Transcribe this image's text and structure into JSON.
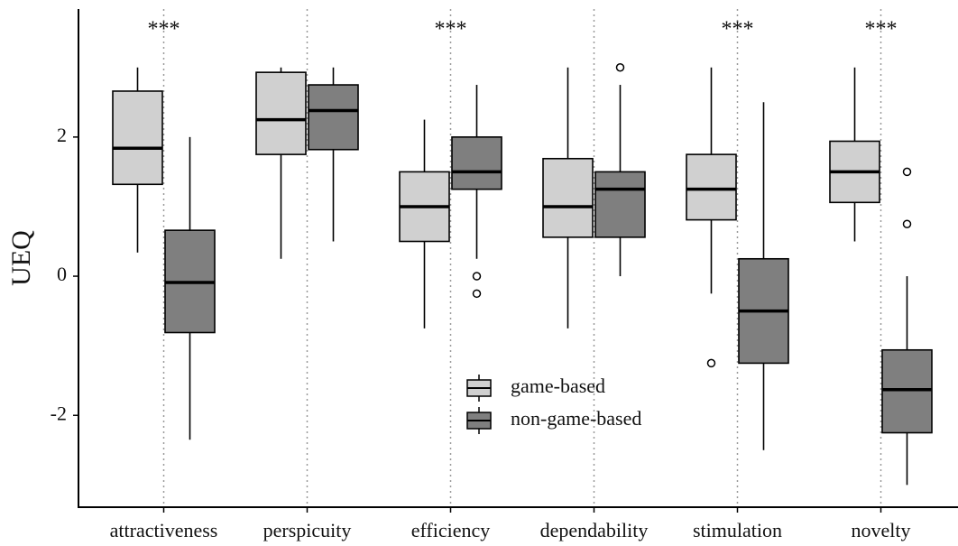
{
  "chart_data": {
    "type": "box",
    "y_label": "UEQ",
    "categories": [
      "attractiveness",
      "perspicuity",
      "efficiency",
      "dependability",
      "stimulation",
      "novelty"
    ],
    "significance": [
      "***",
      null,
      "***",
      null,
      "***",
      "***"
    ],
    "ylim": [
      -3.32,
      3.84
    ],
    "yticks": [
      -2,
      0,
      2
    ],
    "x_grid": true,
    "legend": "bottom-center",
    "series": [
      {
        "name": "game-based",
        "color": "#d0d0d0",
        "low": [
          0.34,
          0.25,
          -0.75,
          -0.75,
          -0.25,
          0.5
        ],
        "q1": [
          1.32,
          1.75,
          0.5,
          0.56,
          0.81,
          1.06
        ],
        "median": [
          1.84,
          2.25,
          1.0,
          1.0,
          1.25,
          1.5
        ],
        "q3": [
          2.66,
          2.93,
          1.5,
          1.69,
          1.75,
          1.94
        ],
        "high": [
          3.0,
          3.0,
          2.25,
          3.0,
          3.0,
          3.0
        ],
        "outliers": [
          [],
          [],
          [],
          [],
          [
            -1.25
          ],
          []
        ]
      },
      {
        "name": "non-game-based",
        "color": "#7f7f7f",
        "low": [
          -2.35,
          0.5,
          0.25,
          0.0,
          -2.5,
          -3.0
        ],
        "q1": [
          -0.81,
          1.82,
          1.25,
          0.56,
          -1.25,
          -2.25
        ],
        "median": [
          -0.09,
          2.38,
          1.5,
          1.25,
          -0.5,
          -1.63
        ],
        "q3": [
          0.66,
          2.75,
          2.0,
          1.5,
          0.25,
          -1.06
        ],
        "high": [
          2.0,
          3.0,
          2.75,
          2.75,
          2.5,
          0.0
        ],
        "outliers": [
          [],
          [],
          [
            0.0,
            -0.25
          ],
          [
            3.0
          ],
          [],
          [
            1.5,
            0.75
          ]
        ]
      }
    ]
  }
}
